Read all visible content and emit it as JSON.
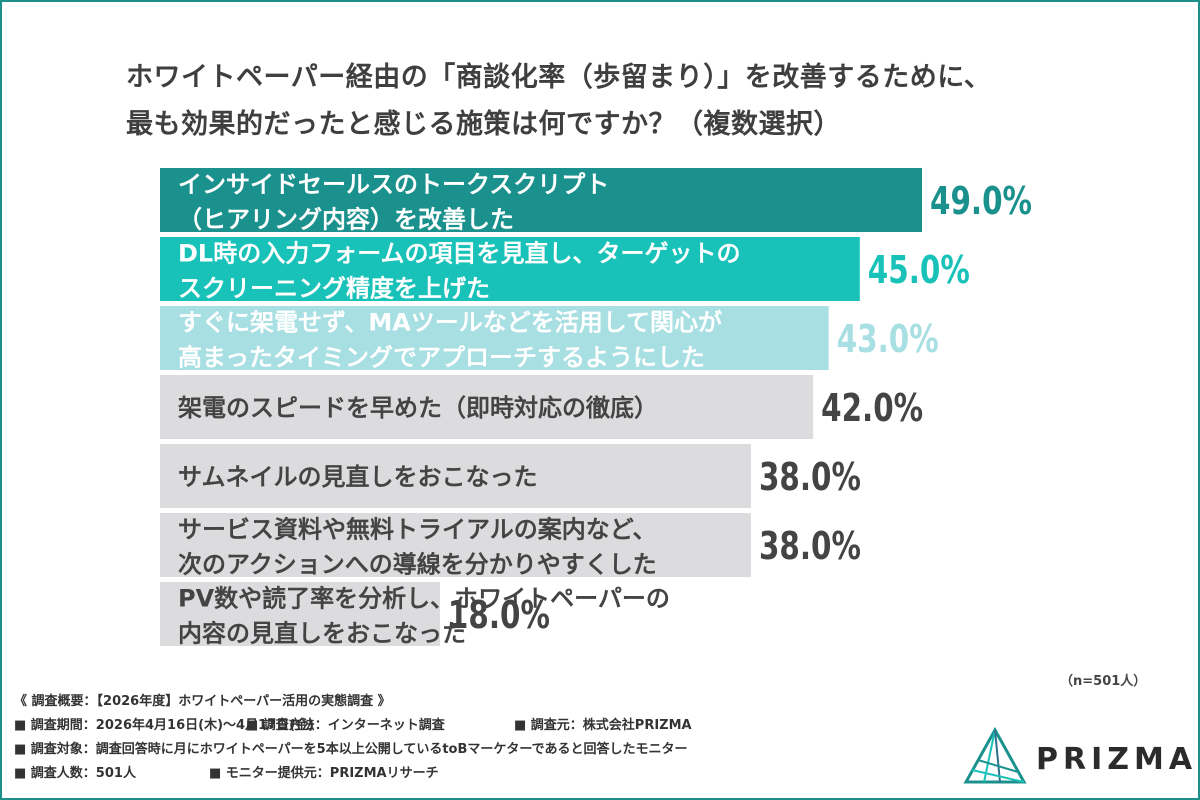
{
  "title": {
    "line1": "ホワイトペーパー経由の「商談化率（歩留まり）」を改善するために、",
    "line2": "最も効果的だったと感じる施策は何ですか？（複数選択）"
  },
  "chart_data": {
    "type": "bar",
    "orientation": "horizontal",
    "categories": [
      [
        "インサイドセールスのトークスクリプト",
        "（ヒアリング内容）を改善した"
      ],
      [
        "DL時の入力フォームの項目を見直し、ターゲットの",
        "スクリーニング精度を上げた"
      ],
      [
        "すぐに架電せず、MAツールなどを活用して関心が",
        "高まったタイミングでアプローチするようにした"
      ],
      [
        "架電のスピードを早めた（即時対応の徹底）"
      ],
      [
        "サムネイルの見直しをおこなった"
      ],
      [
        "サービス資料や無料トライアルの案内など、",
        "次のアクションへの導線を分かりやすくした"
      ],
      [
        "PV数や読了率を分析し、ホワイトペーパーの",
        "内容の見直しをおこなった"
      ]
    ],
    "values": [
      49.0,
      45.0,
      43.0,
      42.0,
      38.0,
      38.0,
      18.0
    ],
    "value_labels": [
      "49.0%",
      "45.0%",
      "43.0%",
      "42.0%",
      "38.0%",
      "38.0%",
      "18.0%"
    ],
    "bar_colors": [
      "#1b918e",
      "#19c2b8",
      "#a8dfe2",
      "#dcdcde",
      "#dcdcde",
      "#dcdcde",
      "#dcdcde"
    ],
    "label_text_colors": [
      "#ffffff",
      "#ffffff",
      "#ffffff",
      "#444444",
      "#444444",
      "#444444",
      "#444444"
    ],
    "value_colors": [
      "#1b918e",
      "#19c2b8",
      "#a8dfe2",
      "#444444",
      "#444444",
      "#444444",
      "#444444"
    ],
    "xlim": [
      0,
      100
    ],
    "sample_note": "（n=501人）"
  },
  "footer": {
    "overview": "《 調査概要：【2026年度】ホワイトペーパー活用の実態調査 》",
    "period": "■ 調査期間：2026年4月16日(木)〜4月17日(金)",
    "method": "■ 調査方法：インターネット調査",
    "source": "■ 調査元：株式会社PRIZMA",
    "target": "■ 調査対象：調査回答時に月にホワイトペーパーを5本以上公開しているtoBマーケターであると回答したモニター",
    "count": "■ 調査人数：501人",
    "provider": "■ モニター提供元：PRIZMAリサーチ"
  },
  "logo": {
    "text": "PRIZMA",
    "colors": [
      "#1b918e",
      "#19c2b8",
      "#2e6f8e"
    ]
  }
}
